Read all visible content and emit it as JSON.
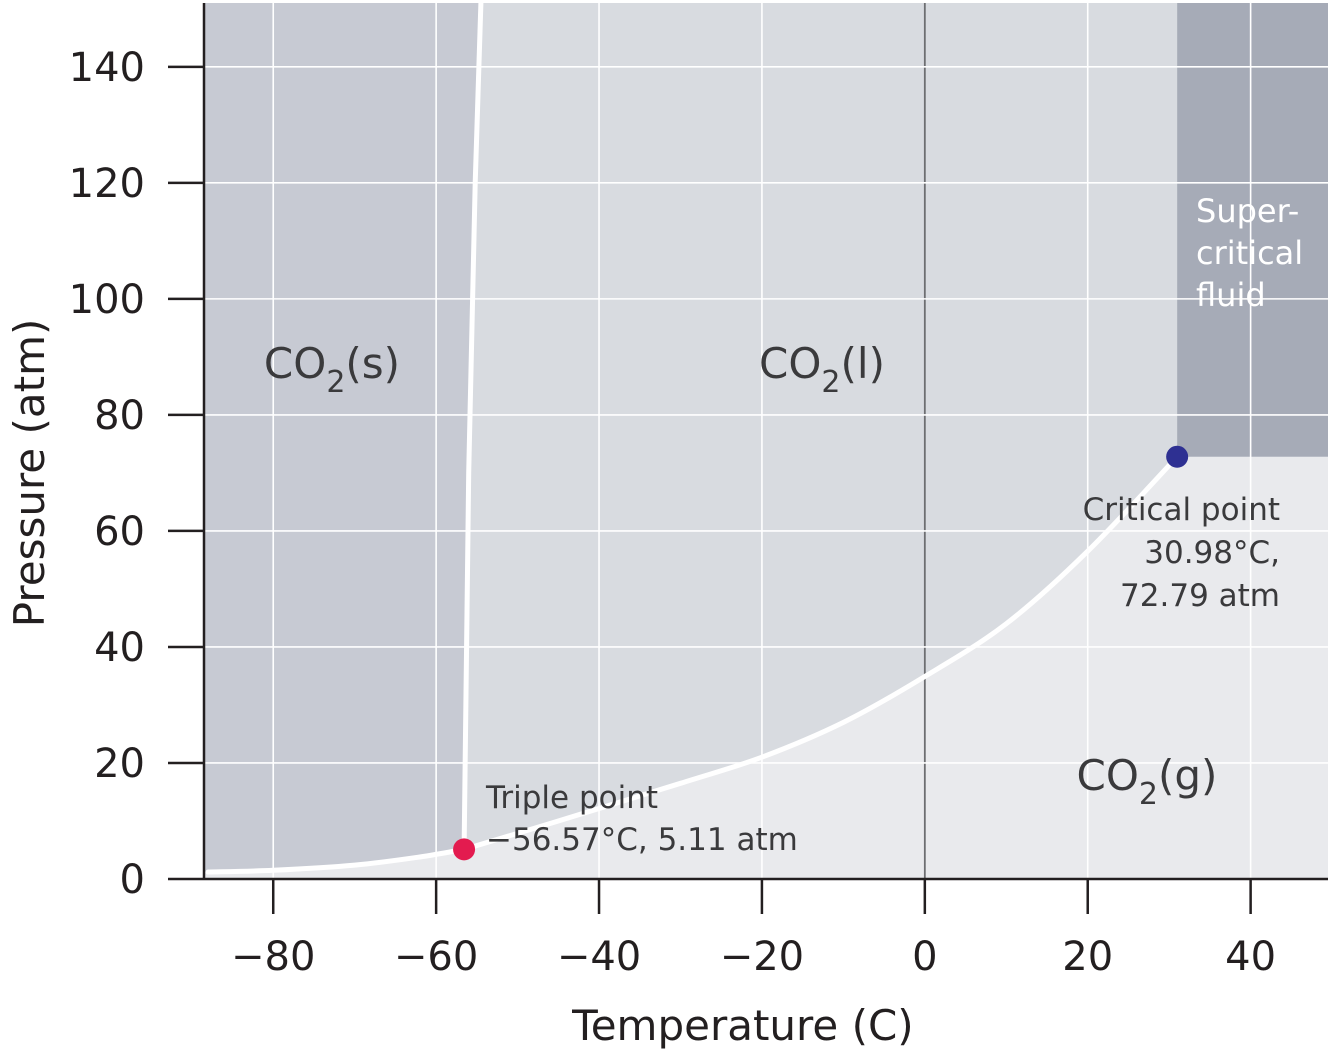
{
  "chart_data": {
    "type": "line",
    "xlabel": "Temperature (C)",
    "ylabel": "Pressure (atm)",
    "xlim": [
      -88.5,
      49.5
    ],
    "ylim": [
      0,
      151
    ],
    "x_ticks": [
      -80,
      -60,
      -40,
      -20,
      0,
      20,
      40
    ],
    "x_tick_labels": [
      "−80",
      "−60",
      "−40",
      "−20",
      "0",
      "20",
      "40"
    ],
    "y_ticks": [
      0,
      20,
      40,
      60,
      80,
      100,
      120,
      140
    ],
    "y_tick_labels": [
      "0",
      "20",
      "40",
      "60",
      "80",
      "100",
      "120",
      "140"
    ],
    "grid": true,
    "series": [
      {
        "id": "sublimation",
        "values": [
          [
            -88.0,
            1.2
          ],
          [
            -80.0,
            1.5
          ],
          [
            -70.0,
            2.4
          ],
          [
            -62.0,
            3.8
          ],
          [
            -56.57,
            5.11
          ]
        ]
      },
      {
        "id": "melting",
        "values": [
          [
            -56.57,
            5.11
          ],
          [
            -56.0,
            70.0
          ],
          [
            -55.2,
            120.0
          ],
          [
            -54.5,
            151.0
          ]
        ]
      },
      {
        "id": "vaporization",
        "values": [
          [
            -56.57,
            5.11
          ],
          [
            -45.0,
            10.0
          ],
          [
            -30.0,
            16.5
          ],
          [
            -20.0,
            21.0
          ],
          [
            -10.0,
            27.0
          ],
          [
            0.0,
            34.9
          ],
          [
            10.0,
            44.0
          ],
          [
            20.0,
            56.5
          ],
          [
            30.98,
            72.79
          ]
        ]
      }
    ],
    "regions": [
      {
        "id": "solid",
        "label_main": "CO",
        "label_sub": "2",
        "label_tail": "(s)",
        "color": "#c7cad3"
      },
      {
        "id": "liquid",
        "label_main": "CO",
        "label_sub": "2",
        "label_tail": "(l)",
        "color": "#d8dbe0"
      },
      {
        "id": "gas",
        "label_main": "CO",
        "label_sub": "2",
        "label_tail": "(g)",
        "color": "#e9eaed"
      },
      {
        "id": "supercritical",
        "label_lines": [
          "Super-",
          "critical",
          "fluid"
        ],
        "color": "#a6abb7"
      }
    ],
    "points": [
      {
        "id": "triple",
        "x": -56.57,
        "y": 5.11,
        "color": "#e31b4f",
        "label_lines": [
          "Triple point",
          "−56.57°C, 5.11 atm"
        ]
      },
      {
        "id": "critical",
        "x": 30.98,
        "y": 72.79,
        "color": "#2e3092",
        "label_lines": [
          "Critical point",
          "30.98°C,",
          "72.79 atm"
        ]
      }
    ],
    "colors": {
      "curve": "#ffffff",
      "grid": "#ffffff",
      "zero_line": "#6d6e71",
      "axis": "#231f20"
    }
  }
}
